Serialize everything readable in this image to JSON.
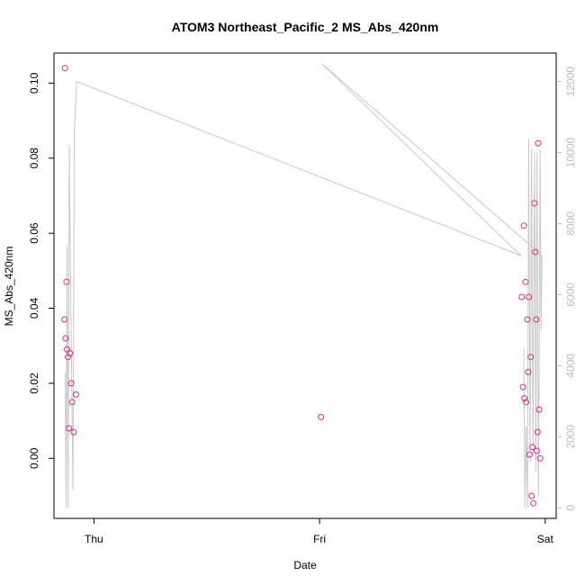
{
  "chart_data": {
    "type": "scatter",
    "title": "ATOM3 Northeast_Pacific_2 MS_Abs_420nm",
    "xlabel": "Date",
    "ylabel": "MS_Abs_420nm",
    "x_ticks": [
      {
        "label": "Thu",
        "value": "2016-08-18"
      },
      {
        "label": "Fri",
        "value": "2016-08-19"
      },
      {
        "label": "Sat",
        "value": "2016-08-20"
      }
    ],
    "xlim": [
      "2016-08-17T19:45",
      "2016-08-20T01:10"
    ],
    "ylim": [
      -0.016,
      0.108
    ],
    "y_ticks": [
      0.0,
      0.02,
      0.04,
      0.06,
      0.08,
      0.1
    ],
    "y_tick_labels": [
      "0.00",
      "0.02",
      "0.04",
      "0.06",
      "0.08",
      "0.10"
    ],
    "y2lim": [
      -300,
      12800
    ],
    "y2_ticks": [
      0,
      2000,
      4000,
      6000,
      8000,
      10000,
      12000
    ],
    "grid": false,
    "series": [
      {
        "color": "#e7298a",
        "marker": "open-circle",
        "points": [
          {
            "x": "2016-08-17T20:52",
            "y": 0.037
          },
          {
            "x": "2016-08-17T20:55",
            "y": 0.104
          },
          {
            "x": "2016-08-17T20:59",
            "y": 0.032
          },
          {
            "x": "2016-08-17T21:05",
            "y": 0.047
          },
          {
            "x": "2016-08-17T21:09",
            "y": 0.029
          },
          {
            "x": "2016-08-17T21:14",
            "y": 0.027
          },
          {
            "x": "2016-08-17T21:20",
            "y": 0.008
          },
          {
            "x": "2016-08-17T21:27",
            "y": 0.028
          },
          {
            "x": "2016-08-17T21:35",
            "y": 0.02
          },
          {
            "x": "2016-08-17T21:41",
            "y": 0.015
          },
          {
            "x": "2016-08-17T21:50",
            "y": 0.007
          },
          {
            "x": "2016-08-17T22:05",
            "y": 0.017
          },
          {
            "x": "2016-08-19T00:09",
            "y": 0.011
          },
          {
            "x": "2016-08-19T21:30",
            "y": 0.043
          },
          {
            "x": "2016-08-19T21:38",
            "y": 0.019
          },
          {
            "x": "2016-08-19T21:44",
            "y": 0.062
          },
          {
            "x": "2016-08-19T21:48",
            "y": 0.016
          },
          {
            "x": "2016-08-19T21:55",
            "y": 0.047
          },
          {
            "x": "2016-08-19T21:58",
            "y": 0.015
          },
          {
            "x": "2016-08-19T22:06",
            "y": 0.037
          },
          {
            "x": "2016-08-19T22:12",
            "y": 0.023
          },
          {
            "x": "2016-08-19T22:16",
            "y": 0.043
          },
          {
            "x": "2016-08-19T22:20",
            "y": 0.001
          },
          {
            "x": "2016-08-19T22:27",
            "y": 0.027
          },
          {
            "x": "2016-08-19T22:33",
            "y": -0.01
          },
          {
            "x": "2016-08-19T22:38",
            "y": 0.003
          },
          {
            "x": "2016-08-19T22:44",
            "y": -0.012
          },
          {
            "x": "2016-08-19T22:51",
            "y": 0.068
          },
          {
            "x": "2016-08-19T22:57",
            "y": 0.055
          },
          {
            "x": "2016-08-19T23:02",
            "y": 0.037
          },
          {
            "x": "2016-08-19T23:06",
            "y": 0.002
          },
          {
            "x": "2016-08-19T23:11",
            "y": 0.007
          },
          {
            "x": "2016-08-19T23:15",
            "y": 0.084
          },
          {
            "x": "2016-08-19T23:21",
            "y": 0.013
          },
          {
            "x": "2016-08-19T23:28",
            "y": 0.0
          }
        ]
      },
      {
        "color": "#c8c8c8",
        "marker": "line",
        "axis": "right",
        "points": [
          {
            "x": "2016-08-17T20:57",
            "y2": 3800
          },
          {
            "x": "2016-08-17T21:02",
            "y2": 0
          },
          {
            "x": "2016-08-17T21:08",
            "y2": 7400
          },
          {
            "x": "2016-08-17T21:15",
            "y2": 0
          },
          {
            "x": "2016-08-17T21:23",
            "y2": 10200
          },
          {
            "x": "2016-08-17T21:29",
            "y2": 7000
          },
          {
            "x": "2016-08-17T21:37",
            "y2": 4000
          },
          {
            "x": "2016-08-17T21:46",
            "y2": 500
          },
          {
            "x": "2016-08-17T21:54",
            "y2": 10500
          },
          {
            "x": "2016-08-17T22:10",
            "y2": 12000
          },
          {
            "x": "2016-08-19T21:25",
            "y2": 7100
          },
          {
            "x": "2016-08-19T00:15",
            "y2": 12500
          },
          {
            "x": "2016-08-19T23:40",
            "y2": 7100
          },
          {
            "x": "2016-08-19T23:33",
            "y2": 5000
          },
          {
            "x": "2016-08-19T23:28",
            "y2": 10100
          },
          {
            "x": "2016-08-19T23:17",
            "y2": 300
          },
          {
            "x": "2016-08-19T23:08",
            "y2": 10000
          },
          {
            "x": "2016-08-19T23:00",
            "y2": 1000
          },
          {
            "x": "2016-08-19T22:52",
            "y2": 10000
          },
          {
            "x": "2016-08-19T22:42",
            "y2": 1500
          },
          {
            "x": "2016-08-19T22:33",
            "y2": 10100
          },
          {
            "x": "2016-08-19T22:24",
            "y2": 1300
          },
          {
            "x": "2016-08-19T22:15",
            "y2": 10400
          },
          {
            "x": "2016-08-19T22:07",
            "y2": 0
          },
          {
            "x": "2016-08-19T21:58",
            "y2": 2300
          },
          {
            "x": "2016-08-19T21:50",
            "y2": 0
          },
          {
            "x": "2016-08-19T21:43",
            "y2": 4500
          }
        ]
      }
    ]
  }
}
